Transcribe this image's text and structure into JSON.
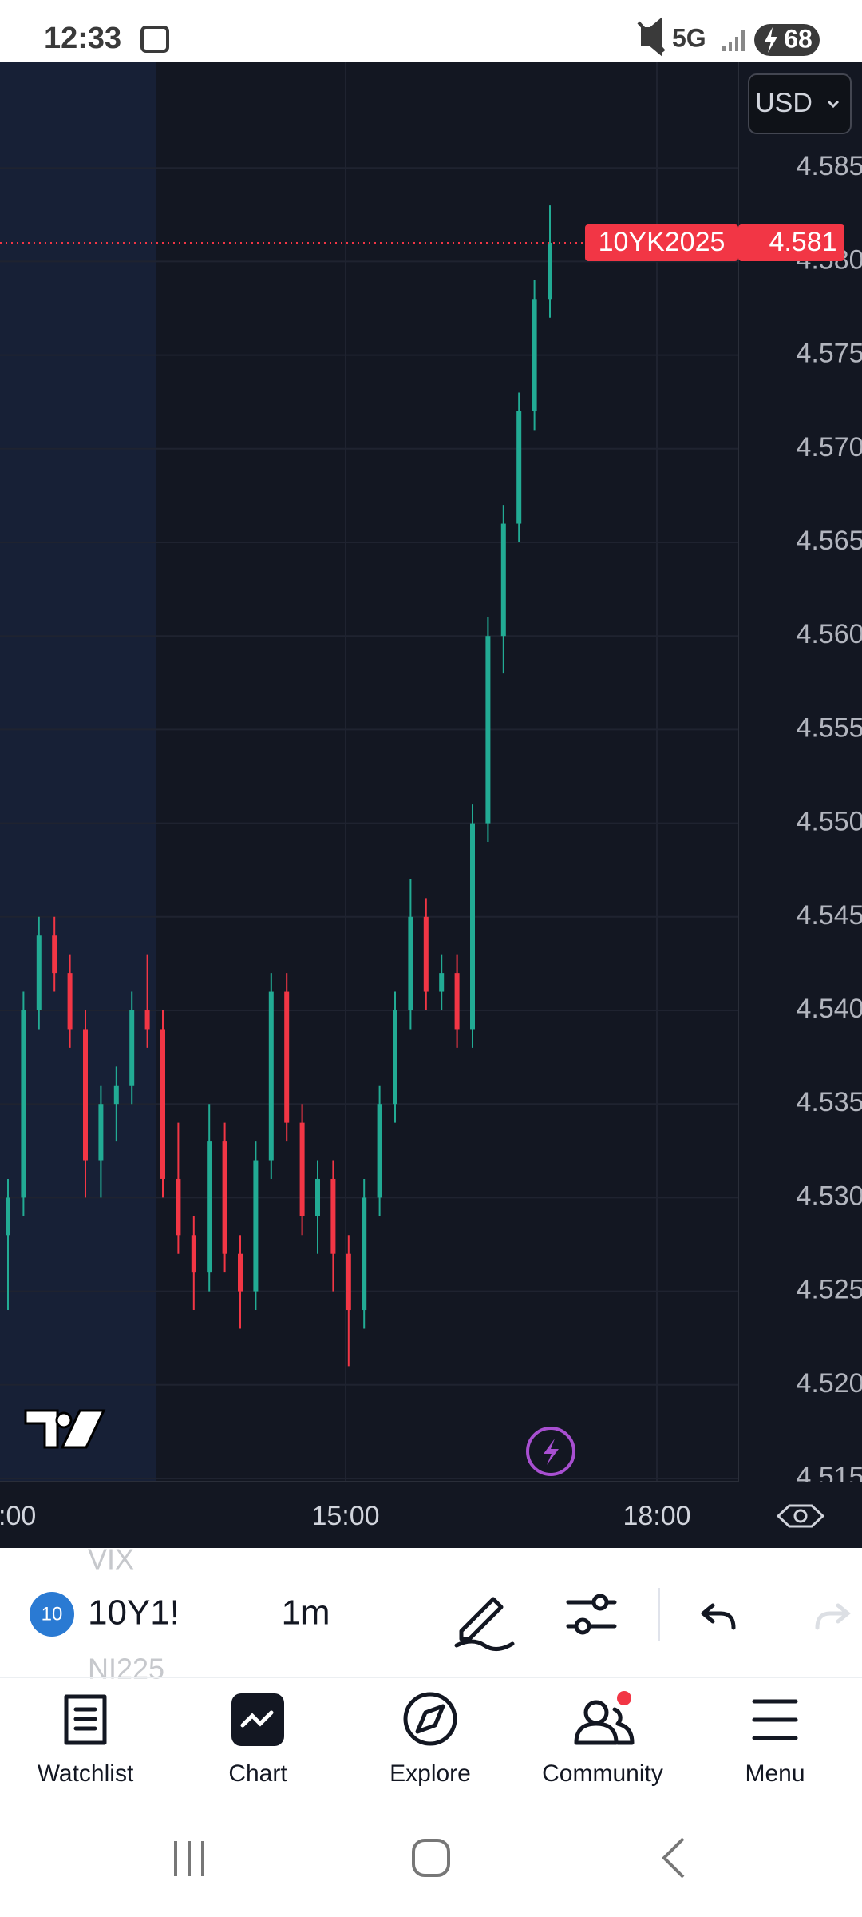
{
  "status_bar": {
    "time": "12:33",
    "network": "5G",
    "battery": "68"
  },
  "currency": "USD",
  "chart_data": {
    "type": "candlestick",
    "ylim": [
      4.515,
      4.59
    ],
    "yticks": [
      4.515,
      {
        "value": 4.52,
        "label": "4.520"
      },
      4.525,
      {
        "value": 4.53,
        "label": "4.530"
      },
      4.535,
      {
        "value": 4.54,
        "label": "4.540"
      },
      4.545,
      {
        "value": 4.55,
        "label": "4.550"
      },
      4.555,
      {
        "value": 4.56,
        "label": "4.560"
      },
      4.565,
      {
        "value": 4.57,
        "label": "4.570"
      },
      4.575,
      {
        "value": 4.58,
        "label": "4.580"
      },
      4.585
    ],
    "time_ticks": [
      ":00",
      "15:00",
      "18:00"
    ],
    "up_color": "#22ab94",
    "down_color": "#f23645",
    "candles": [
      [
        4.528,
        4.531,
        4.524,
        4.53
      ],
      [
        4.53,
        4.541,
        4.529,
        4.54
      ],
      [
        4.54,
        4.545,
        4.539,
        4.544
      ],
      [
        4.544,
        4.545,
        4.541,
        4.542
      ],
      [
        4.542,
        4.543,
        4.538,
        4.539
      ],
      [
        4.539,
        4.54,
        4.53,
        4.532
      ],
      [
        4.532,
        4.536,
        4.53,
        4.535
      ],
      [
        4.535,
        4.537,
        4.533,
        4.536
      ],
      [
        4.536,
        4.541,
        4.535,
        4.54
      ],
      [
        4.54,
        4.543,
        4.538,
        4.539
      ],
      [
        4.539,
        4.54,
        4.53,
        4.531
      ],
      [
        4.531,
        4.534,
        4.527,
        4.528
      ],
      [
        4.528,
        4.529,
        4.524,
        4.526
      ],
      [
        4.526,
        4.535,
        4.525,
        4.533
      ],
      [
        4.533,
        4.534,
        4.526,
        4.527
      ],
      [
        4.527,
        4.528,
        4.523,
        4.525
      ],
      [
        4.525,
        4.533,
        4.524,
        4.532
      ],
      [
        4.532,
        4.542,
        4.531,
        4.541
      ],
      [
        4.541,
        4.542,
        4.533,
        4.534
      ],
      [
        4.534,
        4.535,
        4.528,
        4.529
      ],
      [
        4.529,
        4.532,
        4.527,
        4.531
      ],
      [
        4.531,
        4.532,
        4.525,
        4.527
      ],
      [
        4.527,
        4.528,
        4.521,
        4.524
      ],
      [
        4.524,
        4.531,
        4.523,
        4.53
      ],
      [
        4.53,
        4.536,
        4.529,
        4.535
      ],
      [
        4.535,
        4.541,
        4.534,
        4.54
      ],
      [
        4.54,
        4.547,
        4.539,
        4.545
      ],
      [
        4.545,
        4.546,
        4.54,
        4.541
      ],
      [
        4.541,
        4.543,
        4.54,
        4.542
      ],
      [
        4.542,
        4.543,
        4.538,
        4.539
      ],
      [
        4.539,
        4.551,
        4.538,
        4.55
      ],
      [
        4.55,
        4.561,
        4.549,
        4.56
      ],
      [
        4.56,
        4.567,
        4.558,
        4.566
      ],
      [
        4.566,
        4.573,
        4.565,
        4.572
      ],
      [
        4.572,
        4.579,
        4.571,
        4.578
      ],
      [
        4.578,
        4.583,
        4.577,
        4.581
      ]
    ],
    "last_price": {
      "symbol": "10YK2025",
      "value": 4.581
    }
  },
  "toolbar": {
    "badge": "10",
    "symbol": "10Y1!",
    "interval": "1m",
    "prev_symbol": "VIX",
    "next_symbol": "NI225"
  },
  "nav": [
    "Watchlist",
    "Chart",
    "Explore",
    "Community",
    "Menu"
  ]
}
